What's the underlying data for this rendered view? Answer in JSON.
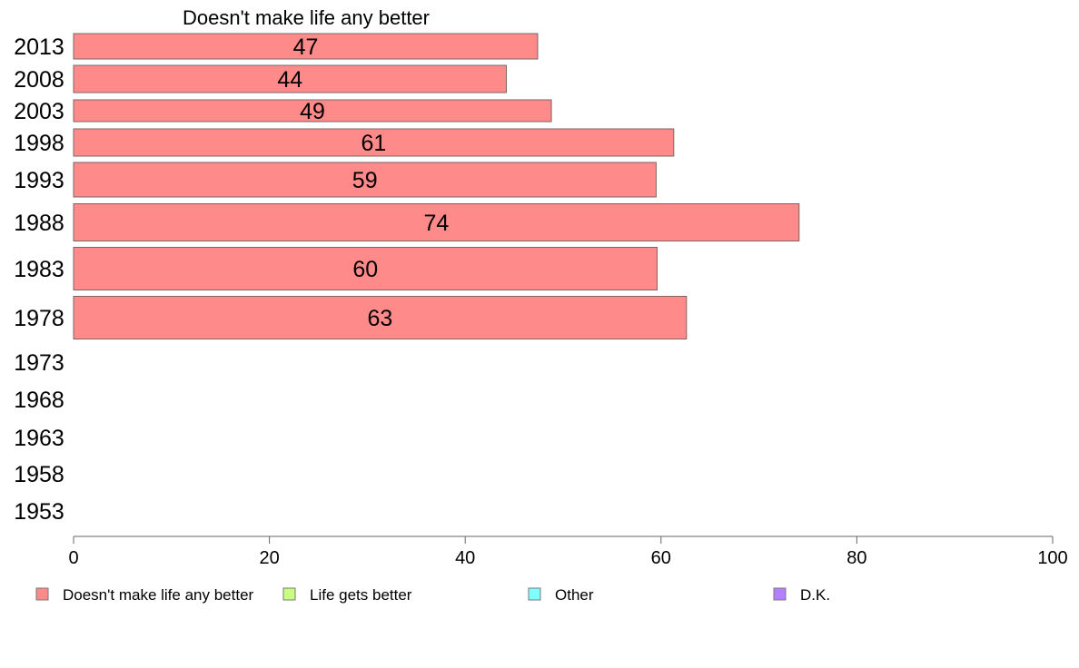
{
  "chart_data": {
    "type": "bar",
    "orientation": "horizontal",
    "title": "Doesn't make life any better",
    "categories": [
      "2013",
      "2008",
      "2003",
      "1998",
      "1993",
      "1988",
      "1983",
      "1978",
      "1973",
      "1968",
      "1963",
      "1958",
      "1953"
    ],
    "series": [
      {
        "name": "Doesn't make life any better",
        "color": "#ff8a8a",
        "values": [
          47.4,
          44.2,
          48.8,
          61.3,
          59.5,
          74.1,
          59.6,
          62.6,
          null,
          null,
          null,
          null,
          null
        ],
        "labels": [
          "47",
          "44",
          "49",
          "61",
          "59",
          "74",
          "60",
          "63",
          "",
          "",
          "",
          "",
          ""
        ]
      }
    ],
    "xlim": [
      0,
      100
    ],
    "xticks": [
      0,
      20,
      40,
      60,
      80,
      100
    ],
    "grid": false,
    "legend": {
      "placement": "bottom",
      "items": [
        {
          "name": "Doesn't make life any better",
          "color": "#ff8a8a"
        },
        {
          "name": "Life gets better",
          "color": "#c8ff80"
        },
        {
          "name": "Other",
          "color": "#80ffff"
        },
        {
          "name": "D.K.",
          "color": "#b580ff"
        }
      ]
    }
  }
}
